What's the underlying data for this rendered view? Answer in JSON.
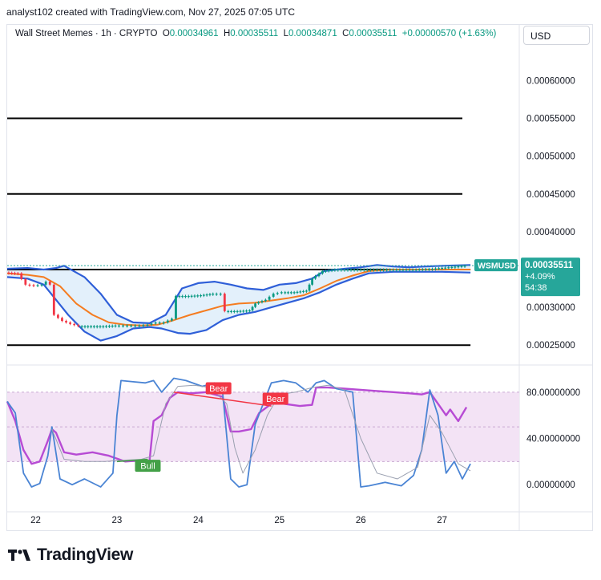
{
  "header": "analyst102 created with TradingView.com, Nov 27, 2025 07:05 UTC",
  "legend": {
    "symbol_line": "Wall Street Memes · 1h · CRYPTO",
    "o_key": "O",
    "o_val": "0.00034961",
    "h_key": "H",
    "h_val": "0.00035511",
    "l_key": "L",
    "l_val": "0.00034871",
    "c_key": "C",
    "c_val": "0.00035511",
    "change": "+0.00000570 (+1.63%)"
  },
  "currency_button": "USD",
  "price_tag": {
    "symbol": "WSMUSD",
    "price": "0.00035511",
    "change_pct": "+4.09%",
    "countdown": "54:38"
  },
  "footer_logo": "TradingView",
  "colors": {
    "up": "#089981",
    "down": "#f23645",
    "bollinger_band": "#2f5fd8",
    "bollinger_fill": "#e3f0fb",
    "basis": "#f57c20",
    "stoch_k": "#4a84d4",
    "stoch_d": "#b48ee8",
    "rsi": "#b74bd4",
    "rsi_band_fill": "#f3e3f5",
    "tag_bg": "#26a69a",
    "bear_label": "#f23645",
    "bull_label": "#43a047"
  },
  "chart_data": [
    {
      "type": "line",
      "subtype": "candlestick",
      "x_ticks": [
        "22",
        "23",
        "24",
        "25",
        "26",
        "27"
      ],
      "y_ticks": [
        "0.00025000",
        "0.00030000",
        "0.00035000",
        "0.00040000",
        "0.00045000",
        "0.00050000",
        "0.00055000",
        "0.00060000"
      ],
      "ylim": [
        0.000229,
        0.000645
      ],
      "x_range": [
        21.65,
        27.95
      ],
      "horizontal_levels": [
        {
          "y": 0.00055,
          "x_from": 21.65,
          "x_to": 27.25
        },
        {
          "y": 0.00045,
          "x_from": 21.65,
          "x_to": 27.25
        },
        {
          "y": 0.00035,
          "x_from": 21.65,
          "x_to": 27.35
        },
        {
          "y": 0.00025,
          "x_from": 21.65,
          "x_to": 27.35
        }
      ],
      "close": [
        [
          21.65,
          0.000346
        ],
        [
          21.8,
          0.000345
        ],
        [
          21.9,
          0.00033
        ],
        [
          22.0,
          0.000329
        ],
        [
          22.1,
          0.00033
        ],
        [
          22.15,
          0.000334
        ],
        [
          22.2,
          0.00033
        ],
        [
          22.25,
          0.00029
        ],
        [
          22.35,
          0.000282
        ],
        [
          22.45,
          0.000278
        ],
        [
          22.55,
          0.000275
        ],
        [
          22.7,
          0.000275
        ],
        [
          22.85,
          0.000275
        ],
        [
          23.0,
          0.000276
        ],
        [
          23.1,
          0.000276
        ],
        [
          23.2,
          0.000276
        ],
        [
          23.3,
          0.000276
        ],
        [
          23.4,
          0.000277
        ],
        [
          23.5,
          0.00028
        ],
        [
          23.6,
          0.00028
        ],
        [
          23.7,
          0.000285
        ],
        [
          23.75,
          0.000315
        ],
        [
          23.9,
          0.000315
        ],
        [
          24.05,
          0.000316
        ],
        [
          24.2,
          0.000318
        ],
        [
          24.3,
          0.000318
        ],
        [
          24.35,
          0.000295
        ],
        [
          24.5,
          0.000295
        ],
        [
          24.65,
          0.000296
        ],
        [
          24.72,
          0.000305
        ],
        [
          24.85,
          0.00031
        ],
        [
          24.95,
          0.000318
        ],
        [
          25.05,
          0.00032
        ],
        [
          25.2,
          0.00032
        ],
        [
          25.35,
          0.000322
        ],
        [
          25.42,
          0.000338
        ],
        [
          25.55,
          0.000348
        ],
        [
          25.7,
          0.00035
        ],
        [
          25.9,
          0.00035
        ],
        [
          26.1,
          0.00035
        ],
        [
          26.3,
          0.00035
        ],
        [
          26.5,
          0.00035
        ],
        [
          26.7,
          0.00035
        ],
        [
          26.9,
          0.000351
        ],
        [
          27.1,
          0.000353
        ],
        [
          27.3,
          0.000355
        ]
      ],
      "bollinger": {
        "upper": [
          [
            21.65,
            0.000351
          ],
          [
            21.9,
            0.000352
          ],
          [
            22.1,
            0.00035
          ],
          [
            22.25,
            0.000352
          ],
          [
            22.35,
            0.000355
          ],
          [
            22.6,
            0.00034
          ],
          [
            22.8,
            0.000318
          ],
          [
            23.0,
            0.00029
          ],
          [
            23.2,
            0.00028
          ],
          [
            23.4,
            0.000279
          ],
          [
            23.6,
            0.00029
          ],
          [
            23.8,
            0.000325
          ],
          [
            24.0,
            0.000332
          ],
          [
            24.2,
            0.000334
          ],
          [
            24.4,
            0.00033
          ],
          [
            24.6,
            0.000325
          ],
          [
            24.8,
            0.000323
          ],
          [
            25.0,
            0.00033
          ],
          [
            25.2,
            0.000332
          ],
          [
            25.4,
            0.000338
          ],
          [
            25.55,
            0.000348
          ],
          [
            25.8,
            0.000351
          ],
          [
            26.0,
            0.000353
          ],
          [
            26.2,
            0.000356
          ],
          [
            26.4,
            0.000354
          ],
          [
            26.6,
            0.000353
          ],
          [
            26.8,
            0.000354
          ],
          [
            27.0,
            0.000355
          ],
          [
            27.35,
            0.000356
          ]
        ],
        "lower": [
          [
            21.65,
            0.00034
          ],
          [
            21.9,
            0.000338
          ],
          [
            22.1,
            0.00033
          ],
          [
            22.25,
            0.00031
          ],
          [
            22.4,
            0.00029
          ],
          [
            22.6,
            0.000268
          ],
          [
            22.8,
            0.000256
          ],
          [
            23.0,
            0.000262
          ],
          [
            23.2,
            0.000272
          ],
          [
            23.4,
            0.000274
          ],
          [
            23.55,
            0.000272
          ],
          [
            23.75,
            0.000266
          ],
          [
            23.9,
            0.000265
          ],
          [
            24.1,
            0.00027
          ],
          [
            24.3,
            0.000283
          ],
          [
            24.5,
            0.00029
          ],
          [
            24.7,
            0.000294
          ],
          [
            24.9,
            0.0003
          ],
          [
            25.1,
            0.000306
          ],
          [
            25.3,
            0.000312
          ],
          [
            25.5,
            0.00032
          ],
          [
            25.7,
            0.00033
          ],
          [
            25.9,
            0.000338
          ],
          [
            26.1,
            0.000345
          ],
          [
            26.4,
            0.000347
          ],
          [
            26.7,
            0.000347
          ],
          [
            27.0,
            0.000347
          ],
          [
            27.35,
            0.000346
          ]
        ],
        "basis": [
          [
            21.65,
            0.000345
          ],
          [
            21.9,
            0.000343
          ],
          [
            22.1,
            0.00034
          ],
          [
            22.3,
            0.000328
          ],
          [
            22.5,
            0.000305
          ],
          [
            22.7,
            0.00029
          ],
          [
            22.9,
            0.00028
          ],
          [
            23.1,
            0.000277
          ],
          [
            23.3,
            0.000276
          ],
          [
            23.5,
            0.000277
          ],
          [
            23.7,
            0.000283
          ],
          [
            23.9,
            0.00029
          ],
          [
            24.1,
            0.000296
          ],
          [
            24.3,
            0.000302
          ],
          [
            24.5,
            0.000305
          ],
          [
            24.7,
            0.000306
          ],
          [
            24.9,
            0.000309
          ],
          [
            25.1,
            0.000312
          ],
          [
            25.3,
            0.000316
          ],
          [
            25.5,
            0.000325
          ],
          [
            25.7,
            0.000335
          ],
          [
            25.9,
            0.000342
          ],
          [
            26.1,
            0.000348
          ],
          [
            26.4,
            0.00035
          ],
          [
            26.8,
            0.00035
          ],
          [
            27.35,
            0.00035
          ]
        ]
      }
    },
    {
      "type": "line",
      "subtype": "oscillator",
      "y_ticks": [
        "0.00000000",
        "40.00000000",
        "80.00000000"
      ],
      "ylim": [
        -20,
        100
      ],
      "band": [
        20,
        80
      ],
      "dashed_levels": [
        80,
        50,
        20
      ],
      "series": [
        {
          "values": [
            [
              21.65,
              72
            ],
            [
              21.75,
              55
            ],
            [
              21.85,
              30
            ],
            [
              21.95,
              18
            ],
            [
              22.05,
              20
            ],
            [
              22.15,
              38
            ],
            [
              22.2,
              48
            ],
            [
              22.25,
              45
            ],
            [
              22.35,
              28
            ],
            [
              22.5,
              26
            ],
            [
              22.7,
              28
            ],
            [
              22.9,
              25
            ],
            [
              23.1,
              20
            ],
            [
              23.3,
              21
            ],
            [
              23.4,
              20
            ],
            [
              23.45,
              55
            ],
            [
              23.55,
              60
            ],
            [
              23.65,
              75
            ],
            [
              23.75,
              80
            ],
            [
              23.9,
              79
            ],
            [
              24.1,
              80
            ],
            [
              24.3,
              76
            ],
            [
              24.4,
              46
            ],
            [
              24.5,
              46
            ],
            [
              24.65,
              48
            ],
            [
              24.75,
              62
            ],
            [
              24.9,
              70
            ],
            [
              25.05,
              70
            ],
            [
              25.25,
              68
            ],
            [
              25.4,
              69
            ],
            [
              25.45,
              84
            ],
            [
              25.6,
              84
            ],
            [
              25.8,
              83
            ],
            [
              26.0,
              82
            ],
            [
              26.2,
              81
            ],
            [
              26.4,
              80
            ],
            [
              26.6,
              79
            ],
            [
              26.75,
              78
            ],
            [
              26.85,
              80
            ],
            [
              26.95,
              70
            ],
            [
              27.05,
              60
            ],
            [
              27.1,
              65
            ],
            [
              27.2,
              55
            ],
            [
              27.3,
              67
            ]
          ]
        },
        {
          "values": [
            [
              21.65,
              72
            ],
            [
              21.75,
              62
            ],
            [
              21.85,
              10
            ],
            [
              21.95,
              -2
            ],
            [
              22.05,
              1
            ],
            [
              22.15,
              25
            ],
            [
              22.2,
              50
            ],
            [
              22.3,
              5
            ],
            [
              22.45,
              0
            ],
            [
              22.6,
              5
            ],
            [
              22.8,
              -2
            ],
            [
              22.95,
              10
            ],
            [
              23.0,
              60
            ],
            [
              23.05,
              90
            ],
            [
              23.2,
              89
            ],
            [
              23.35,
              88
            ],
            [
              23.45,
              90
            ],
            [
              23.55,
              80
            ],
            [
              23.7,
              92
            ],
            [
              23.85,
              90
            ],
            [
              24.05,
              85
            ],
            [
              24.2,
              88
            ],
            [
              24.3,
              80
            ],
            [
              24.4,
              5
            ],
            [
              24.5,
              -2
            ],
            [
              24.6,
              0
            ],
            [
              24.7,
              52
            ],
            [
              24.8,
              70
            ],
            [
              24.9,
              88
            ],
            [
              25.05,
              90
            ],
            [
              25.2,
              88
            ],
            [
              25.35,
              80
            ],
            [
              25.45,
              88
            ],
            [
              25.55,
              90
            ],
            [
              25.7,
              83
            ],
            [
              25.9,
              80
            ],
            [
              26.0,
              -2
            ],
            [
              26.1,
              -1
            ],
            [
              26.3,
              2
            ],
            [
              26.5,
              -1
            ],
            [
              26.65,
              8
            ],
            [
              26.75,
              30
            ],
            [
              26.85,
              82
            ],
            [
              26.95,
              60
            ],
            [
              27.05,
              10
            ],
            [
              27.15,
              20
            ],
            [
              27.25,
              5
            ],
            [
              27.35,
              18
            ]
          ]
        },
        {
          "values": [
            [
              22.2,
              48
            ],
            [
              22.35,
              22
            ],
            [
              22.6,
              20
            ],
            [
              22.85,
              20
            ],
            [
              23.05,
              21
            ],
            [
              23.3,
              22
            ],
            [
              23.45,
              25
            ],
            [
              23.6,
              70
            ],
            [
              23.75,
              85
            ],
            [
              23.95,
              86
            ],
            [
              24.15,
              84
            ],
            [
              24.35,
              70
            ],
            [
              24.45,
              32
            ],
            [
              24.55,
              10
            ],
            [
              24.7,
              30
            ],
            [
              24.85,
              60
            ],
            [
              25.0,
              78
            ],
            [
              25.2,
              80
            ],
            [
              25.4,
              84
            ],
            [
              25.6,
              86
            ],
            [
              25.8,
              82
            ],
            [
              26.0,
              40
            ],
            [
              26.2,
              10
            ],
            [
              26.45,
              5
            ],
            [
              26.7,
              15
            ],
            [
              26.85,
              60
            ],
            [
              27.0,
              45
            ],
            [
              27.2,
              18
            ],
            [
              27.35,
              12
            ]
          ]
        }
      ],
      "annotations": [
        {
          "text": "Bear",
          "x": 24.25,
          "y": 83
        },
        {
          "text": "Bear",
          "x": 24.95,
          "y": 74
        },
        {
          "text": "Bull",
          "x": 23.38,
          "y": 16
        }
      ]
    }
  ]
}
